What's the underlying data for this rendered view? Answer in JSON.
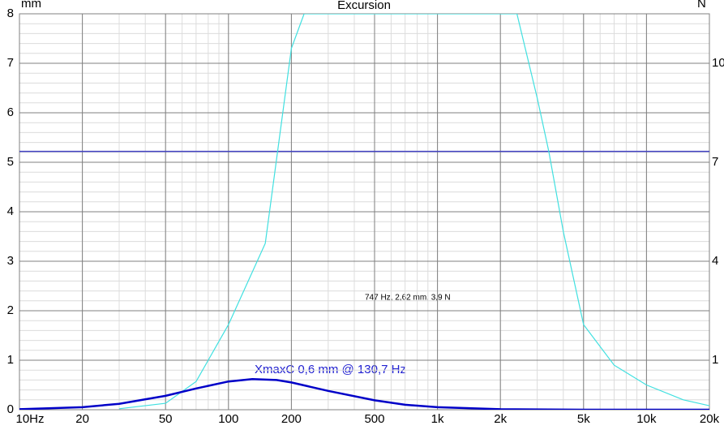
{
  "chart_data": {
    "type": "line",
    "title": "Excursion",
    "y_label": "mm",
    "y2_label": "N",
    "x_scale": "log",
    "xlim": [
      10,
      20000
    ],
    "xticks": [
      {
        "value": 10,
        "label": "10Hz"
      },
      20,
      50,
      100,
      200,
      500,
      {
        "value": 1000,
        "label": "1k"
      },
      {
        "value": 2000,
        "label": "2k"
      },
      {
        "value": 5000,
        "label": "5k"
      },
      {
        "value": 10000,
        "label": "10k"
      },
      {
        "value": 20000,
        "label": "20k"
      }
    ],
    "ylim": [
      0,
      8
    ],
    "yticks": [
      0,
      1,
      2,
      3,
      4,
      5,
      6,
      7,
      8
    ],
    "y2lim": [
      -0.5,
      11.5
    ],
    "y2ticks": [
      1,
      4,
      7,
      10
    ],
    "grid": true,
    "reference_line": {
      "value": 5.22,
      "color": "#4040c0"
    },
    "series": [
      {
        "color": "#40e0e0",
        "x": [
          30,
          50,
          70,
          100,
          150,
          200,
          230,
          2400,
          3000,
          3410,
          4000,
          5000,
          7000,
          10000,
          15000,
          20000
        ],
        "values": [
          0.02,
          0.13,
          0.57,
          1.72,
          3.36,
          7.3,
          8,
          8,
          6.3,
          5.22,
          3.6,
          1.72,
          0.9,
          0.5,
          0.2,
          0.08
        ]
      },
      {
        "color": "#0000c8",
        "x": [
          10,
          20,
          30,
          50,
          70,
          100,
          130,
          170,
          200,
          300,
          500,
          700,
          1000,
          2000,
          5000,
          20000
        ],
        "values": [
          0.01,
          0.05,
          0.12,
          0.28,
          0.43,
          0.57,
          0.62,
          0.6,
          0.55,
          0.38,
          0.19,
          0.1,
          0.05,
          0.01,
          0,
          0
        ]
      }
    ],
    "annotations": [
      "XmaxC 0,6 mm  @ 130,7 Hz",
      "747 Hz, 2,62 mm, 3,9 N"
    ]
  }
}
